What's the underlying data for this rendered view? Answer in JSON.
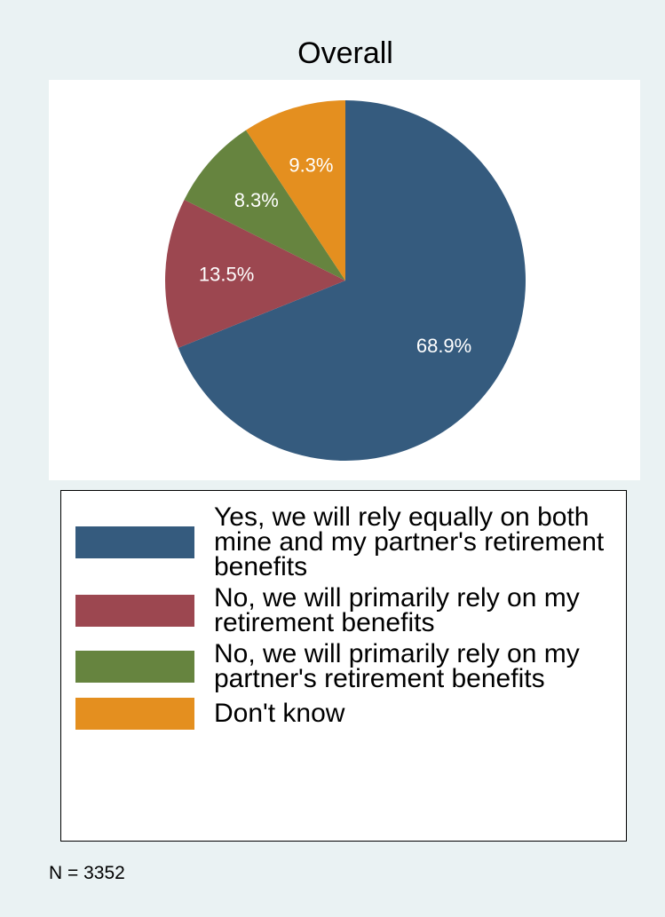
{
  "chart_data": {
    "type": "pie",
    "title": "Overall",
    "categories": [
      "Yes, we will rely equally on both mine and my partner's retirement benefits",
      "No, we will primarily rely on my retirement benefits",
      "No, we will primarily rely on my partner's retirement benefits",
      "Don't know"
    ],
    "values": [
      68.9,
      13.5,
      8.3,
      9.3
    ],
    "value_labels": [
      "68.9%",
      "13.5%",
      "8.3%",
      "9.3%"
    ],
    "colors": [
      "#355b7e",
      "#9c4750",
      "#66843f",
      "#e48f1f"
    ],
    "note": "N = 3352"
  }
}
